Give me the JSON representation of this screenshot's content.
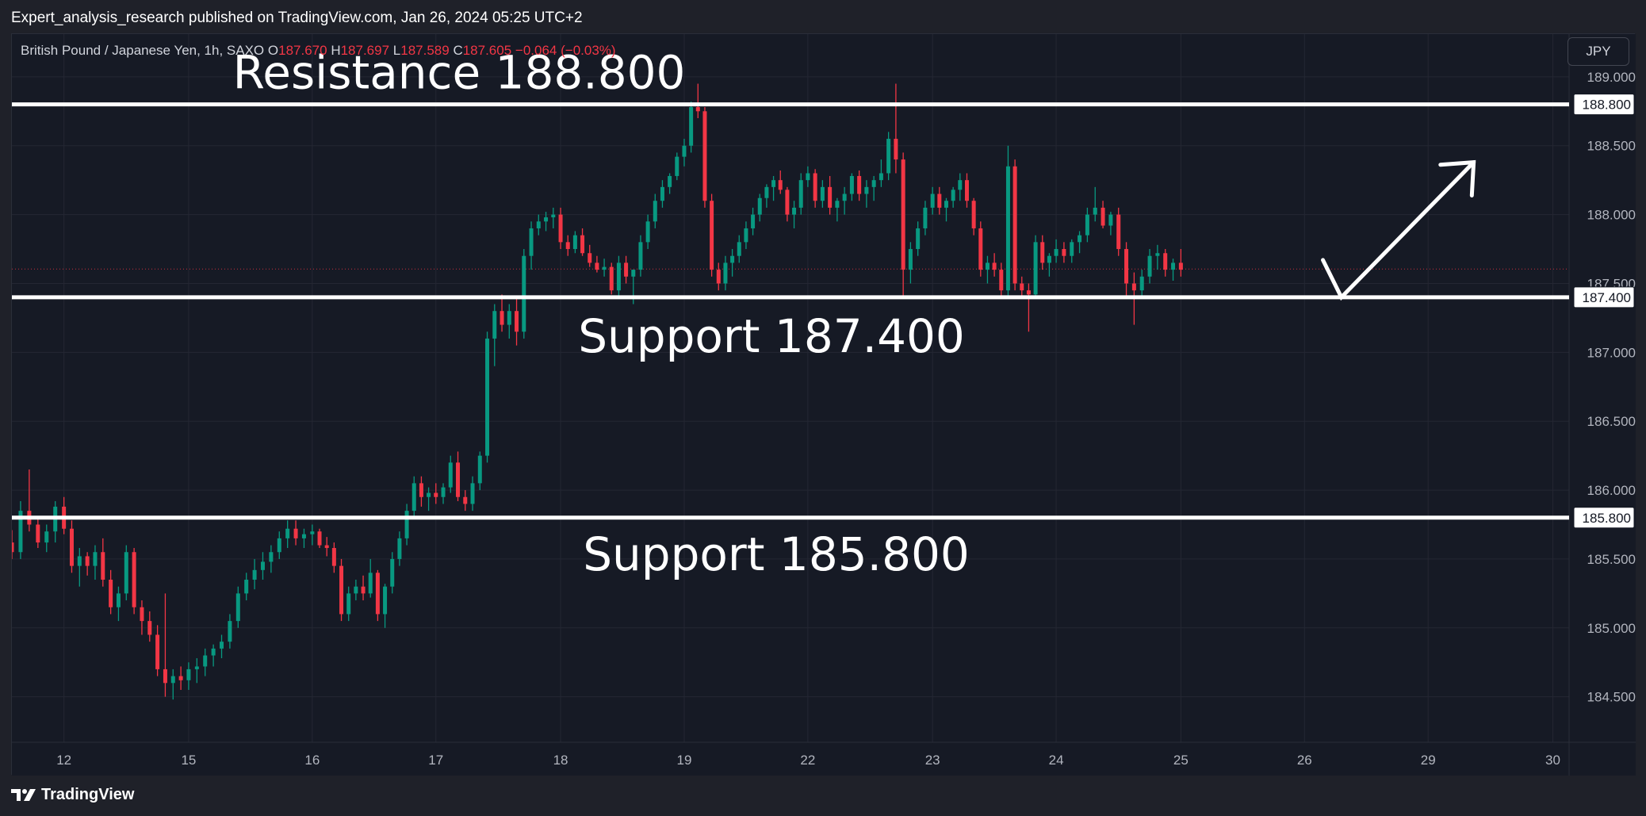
{
  "header": {
    "text": "Expert_analysis_research published on TradingView.com, Jan 26, 2024 05:25 UTC+2"
  },
  "legend": {
    "symbol": "British Pound / Japanese Yen, 1h, SAXO",
    "open_label": "O",
    "open": "187.670",
    "high_label": "H",
    "high": "187.697",
    "low_label": "L",
    "low": "187.589",
    "close_label": "C",
    "close": "187.605",
    "change": "−0.064 (−0.03%)"
  },
  "currency_button": "JPY",
  "footer": {
    "brand": "TradingView",
    "logo_icon": "tradingview-logo-icon"
  },
  "colors": {
    "up": "#089981",
    "down": "#f23645",
    "background": "#161a25",
    "grid": "#242733",
    "annotation": "#ffffff",
    "axis_text": "#b2b5be"
  },
  "chart_data": {
    "type": "candlestick",
    "title": "British Pound / Japanese Yen, 1h, SAXO",
    "ylim": [
      184.17,
      189.31
    ],
    "y_ticks": [
      "189.000",
      "188.500",
      "188.000",
      "187.500",
      "187.000",
      "186.500",
      "186.000",
      "185.500",
      "185.000",
      "184.500"
    ],
    "x_ticks": [
      {
        "label": "12",
        "t": 48
      },
      {
        "label": "15",
        "t": 163
      },
      {
        "label": "16",
        "t": 277
      },
      {
        "label": "17",
        "t": 391
      },
      {
        "label": "18",
        "t": 506
      },
      {
        "label": "19",
        "t": 620
      },
      {
        "label": "22",
        "t": 734
      },
      {
        "label": "23",
        "t": 849
      },
      {
        "label": "24",
        "t": 963
      },
      {
        "label": "25",
        "t": 1078
      },
      {
        "label": "26",
        "t": 1192
      },
      {
        "label": "29",
        "t": 1306
      },
      {
        "label": "30",
        "t": 1421
      }
    ],
    "grid": true,
    "current_price": 187.605,
    "horizontal_levels": [
      {
        "price": 188.8,
        "label": "188.800",
        "annotation": "Resistance 188.800"
      },
      {
        "price": 187.4,
        "label": "187.400",
        "annotation": "Support 187.400"
      },
      {
        "price": 185.8,
        "label": "185.800",
        "annotation": "Support 185.800"
      }
    ],
    "projection_arrow": [
      {
        "t": 1209,
        "price": 187.67
      },
      {
        "t": 1226,
        "price": 187.4
      },
      {
        "t": 1348,
        "price": 188.38
      }
    ],
    "candles": [
      [
        185.62,
        185.71,
        185.5,
        185.55
      ],
      [
        185.55,
        185.92,
        185.5,
        185.85
      ],
      [
        185.85,
        186.15,
        185.7,
        185.75
      ],
      [
        185.75,
        185.8,
        185.58,
        185.62
      ],
      [
        185.62,
        185.75,
        185.55,
        185.7
      ],
      [
        185.7,
        185.92,
        185.62,
        185.88
      ],
      [
        185.88,
        185.95,
        185.68,
        185.72
      ],
      [
        185.72,
        185.78,
        185.4,
        185.45
      ],
      [
        185.45,
        185.58,
        185.3,
        185.52
      ],
      [
        185.52,
        185.55,
        185.38,
        185.45
      ],
      [
        185.45,
        185.6,
        185.35,
        185.55
      ],
      [
        185.55,
        185.65,
        185.3,
        185.35
      ],
      [
        185.35,
        185.42,
        185.1,
        185.15
      ],
      [
        185.15,
        185.3,
        185.05,
        185.25
      ],
      [
        185.25,
        185.6,
        185.2,
        185.55
      ],
      [
        185.55,
        185.58,
        185.1,
        185.15
      ],
      [
        185.15,
        185.2,
        184.95,
        185.05
      ],
      [
        185.05,
        185.12,
        184.9,
        184.95
      ],
      [
        184.95,
        185.02,
        184.65,
        184.7
      ],
      [
        184.7,
        185.25,
        184.5,
        184.6
      ],
      [
        184.6,
        184.7,
        184.48,
        184.65
      ],
      [
        184.65,
        184.72,
        184.55,
        184.62
      ],
      [
        184.62,
        184.75,
        184.55,
        184.7
      ],
      [
        184.7,
        184.78,
        184.6,
        184.72
      ],
      [
        184.72,
        184.85,
        184.65,
        184.8
      ],
      [
        184.8,
        184.88,
        184.72,
        184.85
      ],
      [
        184.85,
        184.95,
        184.78,
        184.9
      ],
      [
        184.9,
        185.1,
        184.85,
        185.05
      ],
      [
        185.05,
        185.3,
        185.0,
        185.25
      ],
      [
        185.25,
        185.4,
        185.2,
        185.35
      ],
      [
        185.35,
        185.5,
        185.28,
        185.42
      ],
      [
        185.42,
        185.55,
        185.35,
        185.48
      ],
      [
        185.48,
        185.6,
        185.4,
        185.55
      ],
      [
        185.55,
        185.7,
        185.5,
        185.65
      ],
      [
        185.65,
        185.78,
        185.58,
        185.72
      ],
      [
        185.72,
        185.78,
        185.6,
        185.65
      ],
      [
        185.65,
        185.72,
        185.58,
        185.68
      ],
      [
        185.68,
        185.75,
        185.6,
        185.7
      ],
      [
        185.7,
        185.72,
        185.58,
        185.6
      ],
      [
        185.6,
        185.66,
        185.52,
        185.58
      ],
      [
        185.58,
        185.62,
        185.4,
        185.45
      ],
      [
        185.45,
        185.5,
        185.05,
        185.1
      ],
      [
        185.1,
        185.3,
        185.05,
        185.25
      ],
      [
        185.25,
        185.35,
        185.2,
        185.3
      ],
      [
        185.3,
        185.38,
        185.2,
        185.25
      ],
      [
        185.25,
        185.5,
        185.22,
        185.4
      ],
      [
        185.4,
        185.42,
        185.05,
        185.1
      ],
      [
        185.1,
        185.32,
        185.0,
        185.3
      ],
      [
        185.3,
        185.55,
        185.25,
        185.5
      ],
      [
        185.5,
        185.7,
        185.45,
        185.65
      ],
      [
        185.65,
        185.9,
        185.6,
        185.85
      ],
      [
        185.85,
        186.1,
        185.8,
        186.05
      ],
      [
        186.05,
        186.1,
        185.88,
        185.95
      ],
      [
        185.95,
        186.02,
        185.85,
        185.98
      ],
      [
        185.98,
        186.05,
        185.9,
        185.95
      ],
      [
        185.95,
        186.05,
        185.9,
        186.02
      ],
      [
        186.02,
        186.25,
        185.98,
        186.2
      ],
      [
        186.2,
        186.28,
        185.92,
        185.95
      ],
      [
        185.95,
        186.0,
        185.85,
        185.9
      ],
      [
        185.9,
        186.1,
        185.85,
        186.05
      ],
      [
        186.05,
        186.28,
        186.0,
        186.25
      ],
      [
        186.25,
        187.15,
        186.2,
        187.1
      ],
      [
        187.1,
        187.35,
        186.9,
        187.3
      ],
      [
        187.3,
        187.42,
        187.15,
        187.2
      ],
      [
        187.2,
        187.35,
        187.1,
        187.3
      ],
      [
        187.3,
        187.4,
        187.05,
        187.15
      ],
      [
        187.15,
        187.75,
        187.1,
        187.7
      ],
      [
        187.7,
        187.95,
        187.6,
        187.9
      ],
      [
        187.9,
        188.0,
        187.85,
        187.95
      ],
      [
        187.95,
        188.02,
        187.88,
        187.98
      ],
      [
        187.98,
        188.05,
        187.9,
        188.0
      ],
      [
        188.0,
        188.05,
        187.75,
        187.8
      ],
      [
        187.8,
        187.85,
        187.7,
        187.75
      ],
      [
        187.75,
        187.88,
        187.72,
        187.85
      ],
      [
        187.85,
        187.9,
        187.7,
        187.72
      ],
      [
        187.72,
        187.78,
        187.62,
        187.65
      ],
      [
        187.65,
        187.7,
        187.58,
        187.6
      ],
      [
        187.6,
        187.68,
        187.55,
        187.62
      ],
      [
        187.62,
        187.65,
        187.42,
        187.45
      ],
      [
        187.45,
        187.7,
        187.4,
        187.65
      ],
      [
        187.65,
        187.7,
        187.5,
        187.55
      ],
      [
        187.55,
        187.6,
        187.35,
        187.6
      ],
      [
        187.6,
        187.85,
        187.55,
        187.8
      ],
      [
        187.8,
        188.0,
        187.75,
        187.95
      ],
      [
        187.95,
        188.15,
        187.9,
        188.1
      ],
      [
        188.1,
        188.25,
        188.05,
        188.2
      ],
      [
        188.2,
        188.3,
        188.15,
        188.28
      ],
      [
        188.28,
        188.45,
        188.25,
        188.42
      ],
      [
        188.42,
        188.55,
        188.35,
        188.5
      ],
      [
        188.5,
        188.82,
        188.45,
        188.78
      ],
      [
        188.78,
        188.95,
        188.7,
        188.75
      ],
      [
        188.75,
        188.78,
        188.05,
        188.1
      ],
      [
        188.1,
        188.15,
        187.55,
        187.6
      ],
      [
        187.6,
        187.65,
        187.45,
        187.5
      ],
      [
        187.5,
        187.7,
        187.45,
        187.65
      ],
      [
        187.65,
        187.75,
        187.55,
        187.7
      ],
      [
        187.7,
        187.85,
        187.65,
        187.8
      ],
      [
        187.8,
        187.95,
        187.75,
        187.9
      ],
      [
        187.9,
        188.05,
        187.85,
        188.0
      ],
      [
        188.0,
        188.15,
        187.95,
        188.12
      ],
      [
        188.12,
        188.22,
        188.05,
        188.2
      ],
      [
        188.2,
        188.28,
        188.1,
        188.25
      ],
      [
        188.25,
        188.32,
        188.15,
        188.18
      ],
      [
        188.18,
        188.2,
        187.95,
        188.0
      ],
      [
        188.0,
        188.1,
        187.9,
        188.05
      ],
      [
        188.05,
        188.3,
        188.0,
        188.25
      ],
      [
        188.25,
        188.35,
        188.2,
        188.3
      ],
      [
        188.3,
        188.33,
        188.05,
        188.1
      ],
      [
        188.1,
        188.25,
        188.05,
        188.2
      ],
      [
        188.2,
        188.28,
        188.0,
        188.05
      ],
      [
        188.05,
        188.12,
        187.95,
        188.1
      ],
      [
        188.1,
        188.2,
        188.0,
        188.15
      ],
      [
        188.15,
        188.3,
        188.1,
        188.28
      ],
      [
        188.28,
        188.32,
        188.1,
        188.15
      ],
      [
        188.15,
        188.25,
        188.05,
        188.2
      ],
      [
        188.2,
        188.28,
        188.1,
        188.25
      ],
      [
        188.25,
        188.4,
        188.2,
        188.3
      ],
      [
        188.3,
        188.6,
        188.25,
        188.55
      ],
      [
        188.55,
        188.95,
        188.3,
        188.4
      ],
      [
        188.4,
        188.45,
        187.4,
        187.6
      ],
      [
        187.6,
        187.8,
        187.5,
        187.75
      ],
      [
        187.75,
        187.95,
        187.7,
        187.9
      ],
      [
        187.9,
        188.1,
        187.85,
        188.05
      ],
      [
        188.05,
        188.2,
        188.0,
        188.15
      ],
      [
        188.15,
        188.2,
        188.0,
        188.05
      ],
      [
        188.05,
        188.12,
        187.95,
        188.1
      ],
      [
        188.1,
        188.2,
        188.05,
        188.18
      ],
      [
        188.18,
        188.3,
        188.1,
        188.25
      ],
      [
        188.25,
        188.3,
        188.05,
        188.1
      ],
      [
        188.1,
        188.12,
        187.85,
        187.9
      ],
      [
        187.9,
        187.95,
        187.55,
        187.6
      ],
      [
        187.6,
        187.7,
        187.5,
        187.65
      ],
      [
        187.65,
        187.72,
        187.55,
        187.6
      ],
      [
        187.6,
        187.65,
        187.4,
        187.45
      ],
      [
        187.45,
        188.5,
        187.4,
        188.35
      ],
      [
        188.35,
        188.4,
        187.45,
        187.5
      ],
      [
        187.5,
        187.55,
        187.4,
        187.45
      ],
      [
        187.45,
        187.5,
        187.15,
        187.42
      ],
      [
        187.42,
        187.85,
        187.4,
        187.8
      ],
      [
        187.8,
        187.85,
        187.6,
        187.65
      ],
      [
        187.65,
        187.72,
        187.55,
        187.7
      ],
      [
        187.7,
        187.82,
        187.65,
        187.75
      ],
      [
        187.75,
        187.8,
        187.65,
        187.7
      ],
      [
        187.7,
        187.82,
        187.65,
        187.8
      ],
      [
        187.8,
        187.88,
        187.72,
        187.85
      ],
      [
        187.85,
        188.05,
        187.8,
        188.0
      ],
      [
        188.0,
        188.2,
        187.95,
        188.05
      ],
      [
        188.05,
        188.1,
        187.9,
        187.92
      ],
      [
        187.92,
        188.02,
        187.85,
        188.0
      ],
      [
        188.0,
        188.05,
        187.7,
        187.75
      ],
      [
        187.75,
        187.8,
        187.4,
        187.5
      ],
      [
        187.5,
        187.58,
        187.2,
        187.45
      ],
      [
        187.45,
        187.6,
        187.4,
        187.55
      ],
      [
        187.55,
        187.75,
        187.5,
        187.7
      ],
      [
        187.7,
        187.78,
        187.6,
        187.72
      ],
      [
        187.72,
        187.75,
        187.55,
        187.6
      ],
      [
        187.6,
        187.68,
        187.52,
        187.65
      ],
      [
        187.65,
        187.75,
        187.55,
        187.6
      ]
    ]
  }
}
